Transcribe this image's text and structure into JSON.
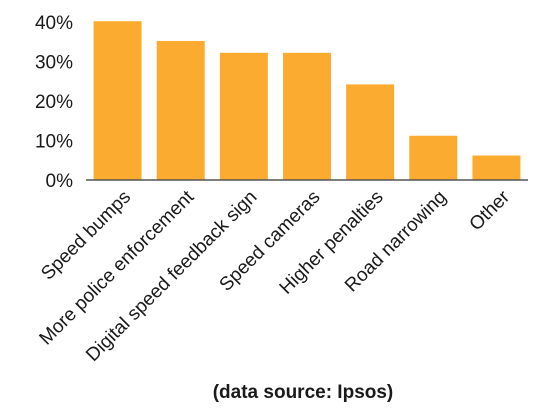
{
  "chart_data": {
    "type": "bar",
    "categories": [
      "Speed bumps",
      "More police enforcement",
      "Digital speed feedback sign",
      "Speed cameras",
      "Higher penalties",
      "Road narrowing",
      "Other"
    ],
    "values": [
      40.2,
      35.2,
      32.2,
      32.2,
      24.2,
      11.2,
      6.2
    ],
    "ylim": [
      0,
      40
    ],
    "yticks": [
      0,
      10,
      20,
      30,
      40
    ],
    "ytick_suffix": "%",
    "caption": "(data source: Ipsos)",
    "grid": false,
    "bar_color": "#FBAB2F",
    "axis_color": "#555555"
  }
}
